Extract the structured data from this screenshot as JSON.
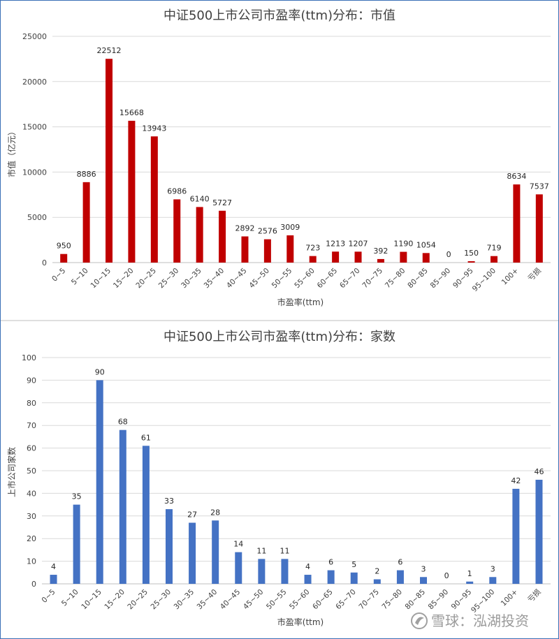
{
  "chart_data": [
    {
      "type": "bar",
      "title": "中证500上市公司市盈率(ttm)分布：市值",
      "xlabel": "市盈率(ttm)",
      "ylabel": "市值（亿元）",
      "ylim": [
        0,
        25000
      ],
      "yticks": [
        0,
        5000,
        10000,
        15000,
        20000,
        25000
      ],
      "grid": true,
      "color": "#C00000",
      "categories": [
        "0~5",
        "5~10",
        "10~15",
        "15~20",
        "20~25",
        "25~30",
        "30~35",
        "35~40",
        "40~45",
        "45~50",
        "50~55",
        "55~60",
        "60~65",
        "65~70",
        "70~75",
        "75~80",
        "80~85",
        "85~90",
        "90~95",
        "95~100",
        "100+",
        "亏损"
      ],
      "values": [
        950,
        8886,
        22512,
        15668,
        13943,
        6986,
        6140,
        5727,
        2892,
        2576,
        3009,
        723,
        1213,
        1207,
        392,
        1190,
        1054,
        0,
        150,
        719,
        8634,
        7537
      ]
    },
    {
      "type": "bar",
      "title": "中证500上市公司市盈率(ttm)分布：家数",
      "xlabel": "市盈率(ttm)",
      "ylabel": "上市公司家数",
      "ylim": [
        0,
        100
      ],
      "yticks": [
        0,
        10,
        20,
        30,
        40,
        50,
        60,
        70,
        80,
        90,
        100
      ],
      "grid": true,
      "color": "#4472C4",
      "categories": [
        "0~5",
        "5~10",
        "10~15",
        "15~20",
        "20~25",
        "25~30",
        "30~35",
        "35~40",
        "40~45",
        "45~50",
        "50~55",
        "55~60",
        "60~65",
        "65~70",
        "70~75",
        "75~80",
        "80~85",
        "85~90",
        "90~95",
        "95~100",
        "100+",
        "亏损"
      ],
      "values": [
        4,
        35,
        90,
        68,
        61,
        33,
        27,
        28,
        14,
        11,
        11,
        4,
        6,
        5,
        2,
        6,
        3,
        0,
        1,
        3,
        42,
        46
      ]
    }
  ],
  "watermark": {
    "text": "雪球：泓湖投资",
    "icon": "snowball-logo-icon"
  }
}
